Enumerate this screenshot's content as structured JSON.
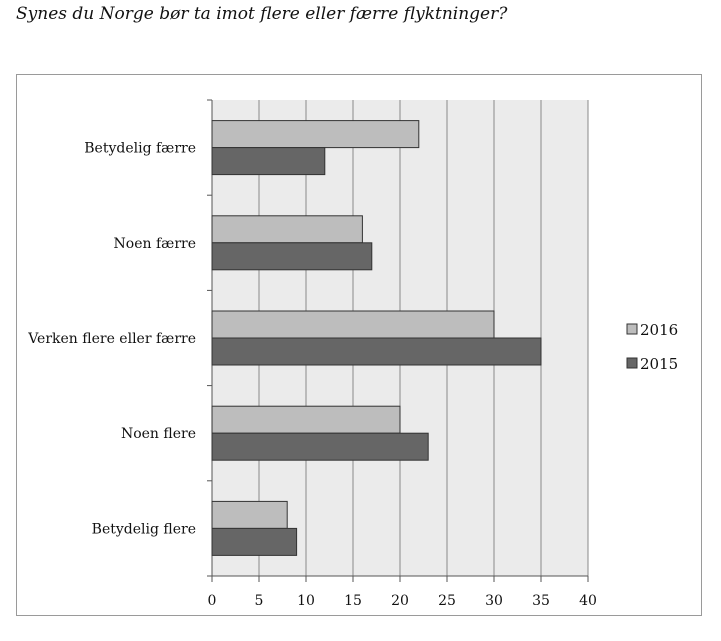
{
  "title": "Synes du Norge bør ta imot flere eller færre flyktninger?",
  "chart_data": {
    "type": "bar",
    "orientation": "horizontal",
    "title": "Synes du Norge bør ta imot flere eller færre flyktninger?",
    "categories": [
      "Betydelig færre",
      "Noen færre",
      "Verken flere eller færre",
      "Noen flere",
      "Betydelig flere"
    ],
    "series": [
      {
        "name": "2016",
        "values": [
          22,
          16,
          30,
          20,
          8
        ],
        "color": "#bdbdbd"
      },
      {
        "name": "2015",
        "values": [
          12,
          17,
          35,
          23,
          9
        ],
        "color": "#666666"
      }
    ],
    "xlim": [
      0,
      40
    ],
    "xticks": [
      0,
      5,
      10,
      15,
      20,
      25,
      30,
      35,
      40
    ],
    "grid": "vertical",
    "legend_position": "right",
    "plot_background": "#ebebeb"
  }
}
